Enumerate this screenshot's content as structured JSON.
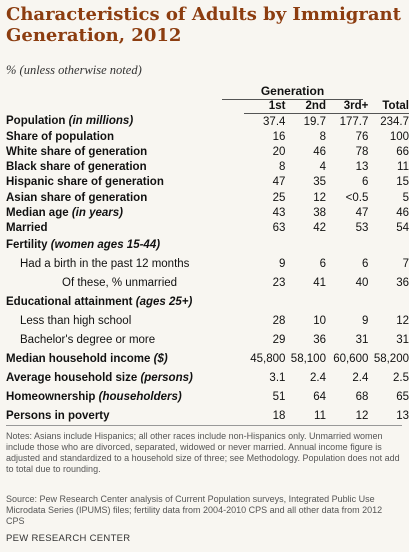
{
  "title": "Characteristics of Adults by Immigrant Generation, 2012",
  "subtitle": "% (unless otherwise noted)",
  "generation_header": "Generation",
  "columns": [
    "1st",
    "2nd",
    "3rd+",
    "Total"
  ],
  "rows": [
    {
      "label": "Population",
      "label_it": "(in millions)",
      "v": [
        "37.4",
        "19.7",
        "177.7",
        "234.7"
      ]
    },
    {
      "label": "Share of population",
      "v": [
        "16",
        "8",
        "76",
        "100"
      ]
    },
    {
      "label": "White share of generation",
      "v": [
        "20",
        "46",
        "78",
        "66"
      ]
    },
    {
      "label": "Black share of generation",
      "v": [
        "8",
        "4",
        "13",
        "11"
      ]
    },
    {
      "label": "Hispanic share of generation",
      "v": [
        "47",
        "35",
        "6",
        "15"
      ]
    },
    {
      "label": "Asian share of generation",
      "v": [
        "25",
        "12",
        "<0.5",
        "5"
      ]
    },
    {
      "label": "Median age",
      "label_it": "(in years)",
      "v": [
        "43",
        "38",
        "47",
        "46"
      ]
    },
    {
      "label": "Married",
      "v": [
        "63",
        "42",
        "53",
        "54"
      ]
    },
    {
      "label": "Fertility",
      "label_it": "(women ages 15-44)",
      "v": [
        "",
        "",
        "",
        ""
      ]
    },
    {
      "label": "Had a birth in the past 12 months",
      "v": [
        "9",
        "6",
        "6",
        "7"
      ]
    },
    {
      "label": "Of these, % unmarried",
      "v": [
        "23",
        "41",
        "40",
        "36"
      ]
    },
    {
      "label": "Educational attainment",
      "label_it": "(ages 25+)",
      "v": [
        "",
        "",
        "",
        ""
      ]
    },
    {
      "label": "Less than high school",
      "v": [
        "28",
        "10",
        "9",
        "12"
      ]
    },
    {
      "label": "Bachelor's degree or more",
      "v": [
        "29",
        "36",
        "31",
        "31"
      ]
    },
    {
      "label": "Median household income",
      "label_it": "($)",
      "v": [
        "45,800",
        "58,100",
        "60,600",
        "58,200"
      ]
    },
    {
      "label": "Average household size",
      "label_it": "(persons)",
      "v": [
        "3.1",
        "2.4",
        "2.4",
        "2.5"
      ]
    },
    {
      "label": "Homeownership",
      "label_it": "(householders)",
      "v": [
        "51",
        "64",
        "68",
        "65"
      ]
    },
    {
      "label": "Persons in poverty",
      "v": [
        "18",
        "11",
        "12",
        "13"
      ]
    }
  ],
  "notes": "Notes: Asians include Hispanics; all other races include non-Hispanics only. Unmarried women include those who are divorced, separated, widowed or never married. Annual income figure is adjusted and standardized to a household size of three; see Methodology. Population does not add to total due to rounding.",
  "source": "Source: Pew Research Center analysis of Current Population surveys, Integrated Public Use Microdata Series (IPUMS) files; fertility data from 2004-2010 CPS and all other data from 2012 CPS",
  "organization": "PEW RESEARCH CENTER"
}
